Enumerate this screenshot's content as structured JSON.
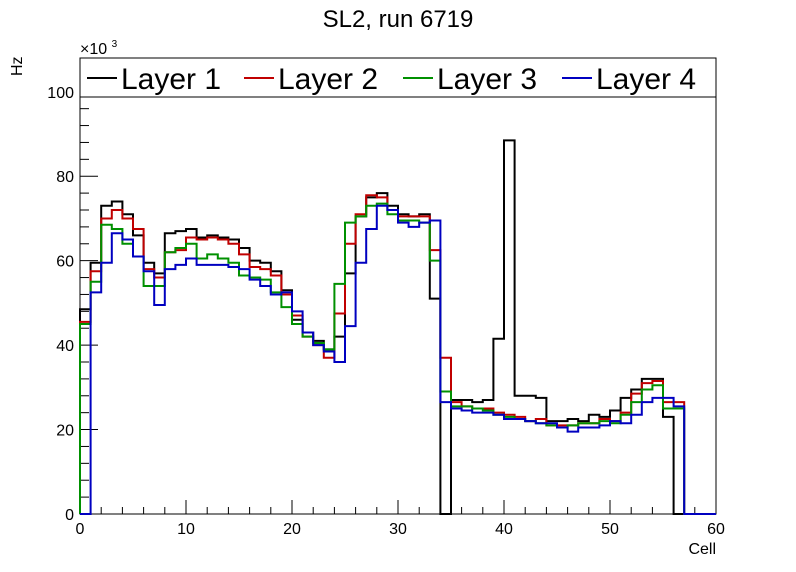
{
  "chart_data": {
    "type": "line",
    "title": "SL2, run 6719",
    "xlabel": "Cell",
    "ylabel": "Hz",
    "y_multiplier": "×10",
    "y_multiplier_exp": "3",
    "xlim": [
      0,
      60
    ],
    "ylim": [
      0,
      108
    ],
    "x_ticks": [
      0,
      10,
      20,
      30,
      40,
      50,
      60
    ],
    "y_ticks": [
      0,
      20,
      40,
      60,
      80,
      100
    ],
    "grid": false,
    "legend_position": "top",
    "bin_edges_start": 0,
    "bin_width": 1,
    "series": [
      {
        "name": "Layer 1",
        "color": "#000000",
        "values": [
          48.5,
          59.5,
          73,
          74,
          71,
          66,
          59.5,
          57,
          66.5,
          67,
          67.5,
          65.5,
          66,
          65.5,
          65,
          63,
          60,
          59.5,
          57.5,
          53,
          46,
          43,
          41,
          39,
          42,
          57,
          70.5,
          75,
          76,
          73,
          71,
          70.5,
          71,
          51,
          0,
          27,
          27,
          26.5,
          27,
          41.5,
          88.5,
          28,
          28,
          27.5,
          22,
          22,
          22.5,
          22,
          23.5,
          23,
          24.5,
          27.5,
          29.5,
          32,
          32,
          23,
          0,
          0,
          0,
          0
        ]
      },
      {
        "name": "Layer 2",
        "color": "#c00000",
        "values": [
          45.5,
          57.5,
          70,
          72,
          70,
          67.5,
          58,
          56,
          62,
          62.5,
          65.5,
          65,
          65.5,
          65,
          64,
          61.5,
          58.5,
          58,
          56.5,
          52,
          47,
          42,
          40,
          37,
          47.5,
          64,
          71,
          75.5,
          75,
          72,
          70.5,
          70.5,
          70.5,
          62.5,
          37,
          26.5,
          25.5,
          25,
          25,
          24,
          23.5,
          23,
          22,
          22.5,
          21,
          21,
          21,
          21.5,
          21.5,
          22.5,
          22,
          24,
          28.5,
          31,
          31.5,
          26.5,
          26.5,
          0,
          0,
          0
        ]
      },
      {
        "name": "Layer 3",
        "color": "#009000",
        "values": [
          45,
          55,
          68.5,
          67.5,
          64,
          61,
          54,
          54,
          62,
          63,
          64,
          60.5,
          61.5,
          60.5,
          59.5,
          56.5,
          56,
          55.5,
          52.5,
          49,
          45,
          42,
          40.5,
          39,
          54.5,
          69,
          70.5,
          73,
          73.5,
          71,
          69.5,
          69.5,
          69,
          60,
          29,
          25.5,
          25.5,
          25,
          24.5,
          23.5,
          23,
          22.5,
          22,
          21.5,
          21,
          20.5,
          21,
          21.5,
          21.5,
          22,
          21.5,
          23.5,
          26.5,
          29.5,
          30.5,
          25,
          25,
          0,
          0,
          0
        ]
      },
      {
        "name": "Layer 4",
        "color": "#0000c0",
        "values": [
          0,
          52.5,
          59.5,
          66.5,
          65,
          61,
          57.5,
          49.5,
          58,
          59,
          60.5,
          59,
          59,
          59,
          58.5,
          58,
          55.5,
          54,
          52,
          52.5,
          48,
          43,
          40,
          38.5,
          36,
          44.5,
          59.5,
          67.5,
          73,
          72,
          69,
          68,
          69,
          69.5,
          26.5,
          25,
          24.5,
          24,
          24,
          23.5,
          22.5,
          22.5,
          22,
          21.5,
          21.5,
          20.5,
          19.5,
          20.5,
          20.5,
          21,
          22,
          21.5,
          23.5,
          26.5,
          27.5,
          27.5,
          25.5,
          0,
          0,
          0
        ]
      }
    ]
  }
}
